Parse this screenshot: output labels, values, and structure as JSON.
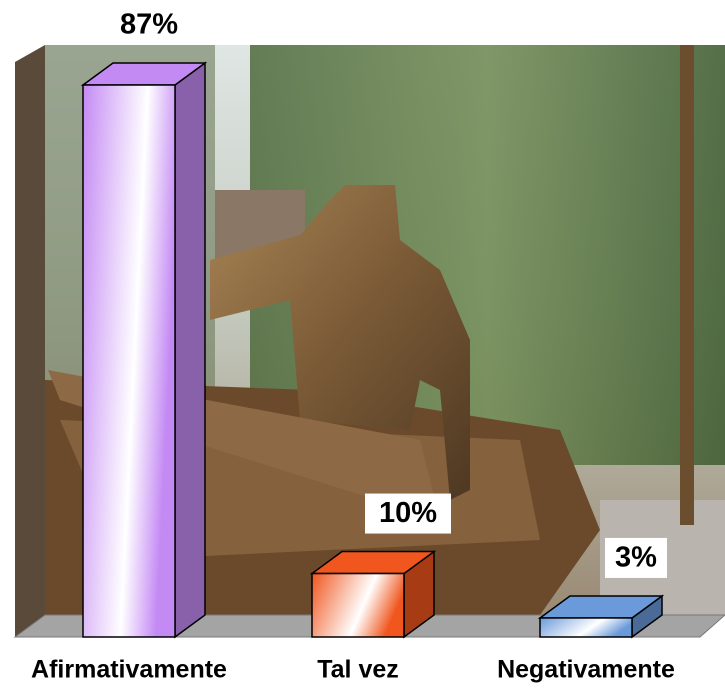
{
  "chart_data": {
    "type": "bar3d",
    "categories": [
      "Afirmativamente",
      "Tal vez",
      "Negativamente"
    ],
    "values": [
      87,
      10,
      3
    ],
    "value_labels": [
      "87%",
      "10%",
      "3%"
    ],
    "colors": [
      "#c48af4",
      "#f0561e",
      "#6a9ada"
    ]
  }
}
